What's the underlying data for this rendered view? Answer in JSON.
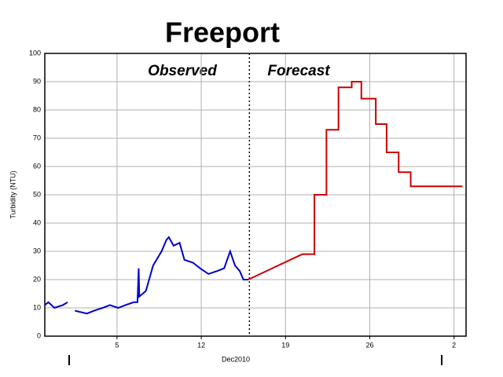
{
  "chart_data": {
    "type": "line",
    "title": "Freeport",
    "ylabel": "Turbidity (NTU)",
    "xlabel": "Dec2010",
    "annotations": [
      "Observed",
      "Forecast"
    ],
    "divider_x": 16,
    "xlim": [
      -1,
      34
    ],
    "xticks": [
      5,
      12,
      19,
      26,
      {
        "value": 33,
        "label": "2"
      }
    ],
    "ylim": [
      0,
      100
    ],
    "yticks": [
      0,
      10,
      20,
      30,
      40,
      50,
      60,
      70,
      80,
      90,
      100
    ],
    "grid": true,
    "series": [
      {
        "name": "Observed",
        "color": "#0000cc",
        "x": [
          -1,
          -0.7,
          -0.2,
          0.5,
          0.9,
          1.2,
          1.5,
          2.5,
          3.1,
          3.8,
          4.4,
          5.1,
          5.7,
          6.4,
          6.7,
          6.8,
          6.85,
          7.4,
          8.0,
          8.7,
          9.1,
          9.3,
          9.7,
          10.2,
          10.6,
          11.3,
          11.9,
          12.6,
          13.3,
          13.9,
          14.4,
          14.8,
          15.2,
          15.5,
          15.9
        ],
        "values": [
          11,
          12,
          10,
          11,
          12,
          null,
          9,
          8,
          9,
          10,
          11,
          10,
          11,
          12,
          12,
          24,
          14,
          16,
          25,
          30,
          34,
          35,
          32,
          33,
          27,
          26,
          24,
          22,
          23,
          24,
          30,
          25,
          23,
          20,
          20
        ]
      },
      {
        "name": "Forecast",
        "color": "#cc0000",
        "x": [
          15.9,
          20.4,
          21.4,
          21.4,
          22.4,
          22.4,
          23.4,
          23.4,
          24.5,
          24.5,
          25.3,
          25.3,
          26.5,
          26.5,
          27.4,
          27.4,
          28.4,
          28.4,
          29.4,
          29.4,
          33.7
        ],
        "values": [
          20,
          29,
          29,
          50,
          50,
          73,
          73,
          88,
          88,
          90,
          90,
          84,
          84,
          75,
          75,
          65,
          65,
          58,
          58,
          53,
          53
        ]
      }
    ]
  }
}
